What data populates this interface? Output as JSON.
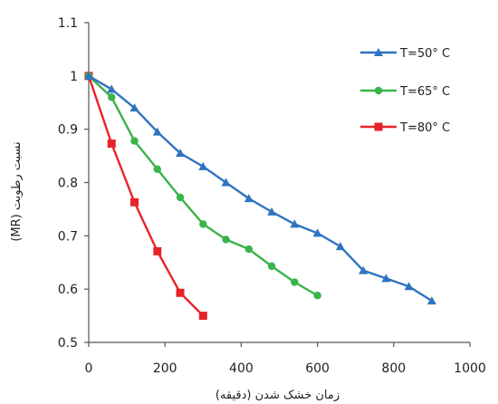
{
  "chart_data": {
    "type": "line",
    "xlabel": "زمان خشک شدن (دقیقه)",
    "ylabel": "نسبت رطوبت (MR)",
    "xlim": [
      0,
      1000
    ],
    "ylim": [
      0.5,
      1.1
    ],
    "xticks": [
      "0",
      "200",
      "400",
      "600",
      "800",
      "1000"
    ],
    "yticks": [
      "0.5",
      "0.6",
      "0.7",
      "0.8",
      "0.9",
      "1",
      "1.1"
    ],
    "grid": false,
    "legend_position": "top-right",
    "series": [
      {
        "name": "T=50° C",
        "color": "#2e74c0",
        "marker": "triangle",
        "x": [
          0,
          60,
          120,
          180,
          240,
          300,
          360,
          420,
          480,
          540,
          600,
          660,
          720,
          780,
          840,
          900
        ],
        "y": [
          1.0,
          0.975,
          0.94,
          0.895,
          0.855,
          0.83,
          0.8,
          0.77,
          0.745,
          0.722,
          0.705,
          0.68,
          0.635,
          0.62,
          0.605,
          0.578
        ]
      },
      {
        "name": "T=65° C",
        "color": "#3ab34a",
        "marker": "circle",
        "x": [
          0,
          60,
          120,
          180,
          240,
          300,
          360,
          420,
          480,
          540,
          600
        ],
        "y": [
          1.0,
          0.96,
          0.878,
          0.825,
          0.772,
          0.722,
          0.693,
          0.675,
          0.643,
          0.613,
          0.588
        ]
      },
      {
        "name": "T=80° C",
        "color": "#e8222a",
        "marker": "square",
        "x": [
          0,
          60,
          120,
          180,
          240,
          300
        ],
        "y": [
          1.0,
          0.873,
          0.763,
          0.671,
          0.593,
          0.55
        ]
      }
    ]
  }
}
